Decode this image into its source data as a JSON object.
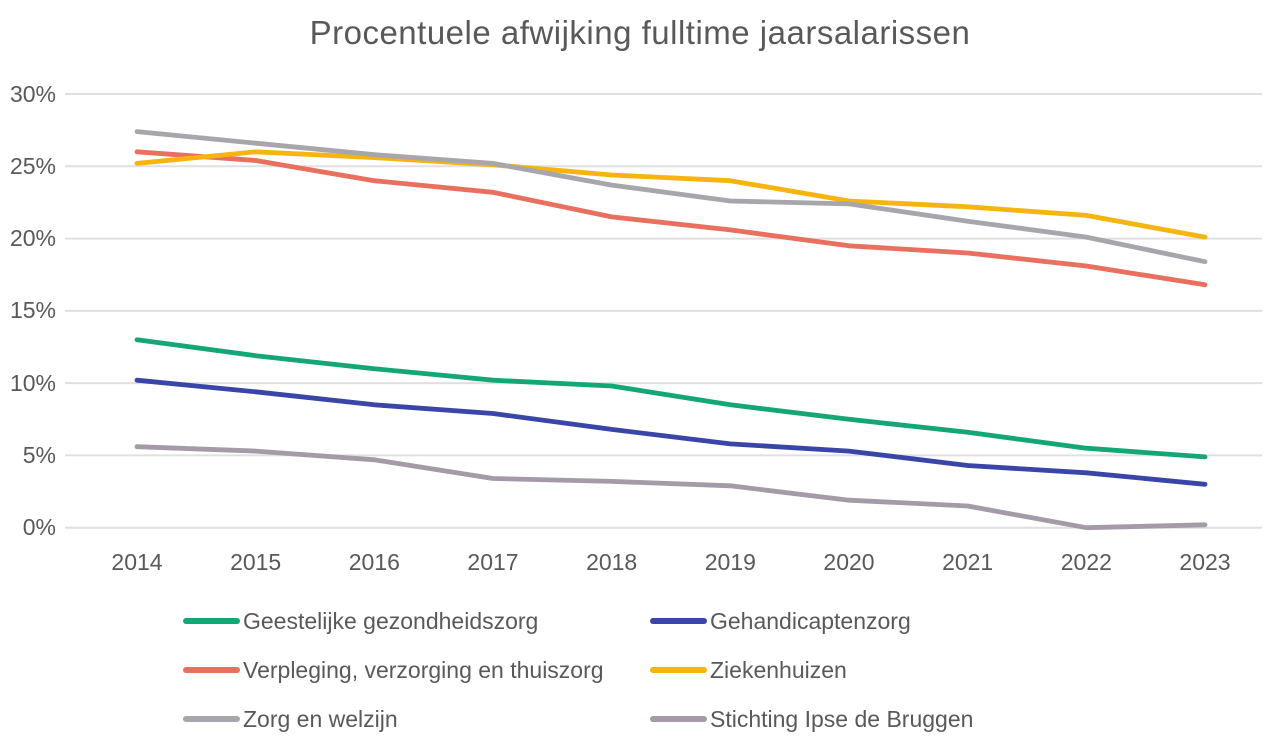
{
  "title": "Procentuele afwijking fulltime jaarsalarissen",
  "chart_data": {
    "type": "line",
    "title": "Procentuele afwijking fulltime jaarsalarissen",
    "x": [
      "2014",
      "2015",
      "2016",
      "2017",
      "2018",
      "2019",
      "2020",
      "2021",
      "2022",
      "2023"
    ],
    "series": [
      {
        "name": "Geestelijke gezondheidszorg",
        "color": "#14a775",
        "values": [
          13.0,
          11.9,
          11.0,
          10.2,
          9.8,
          8.5,
          7.5,
          6.6,
          5.5,
          4.9
        ]
      },
      {
        "name": "Gehandicaptenzorg",
        "color": "#3a45a8",
        "values": [
          10.2,
          9.4,
          8.5,
          7.9,
          6.8,
          5.8,
          5.3,
          4.3,
          3.8,
          3.0
        ]
      },
      {
        "name": "Verpleging, verzorging en thuiszorg",
        "color": "#e96f5e",
        "values": [
          26.0,
          25.4,
          24.0,
          23.2,
          21.5,
          20.6,
          19.5,
          19.0,
          18.1,
          16.8
        ]
      },
      {
        "name": "Ziekenhuizen",
        "color": "#f6b40e",
        "values": [
          25.2,
          26.0,
          25.6,
          25.1,
          24.4,
          24.0,
          22.6,
          22.2,
          21.6,
          20.1
        ]
      },
      {
        "name": "Zorg en welzijn",
        "color": "#a6a6ac",
        "values": [
          27.4,
          26.6,
          25.8,
          25.2,
          23.7,
          22.6,
          22.4,
          21.2,
          20.1,
          18.4
        ]
      },
      {
        "name": "Stichting Ipse de Bruggen",
        "color": "#a49aa8",
        "values": [
          5.6,
          5.3,
          4.7,
          3.4,
          3.2,
          2.9,
          1.9,
          1.5,
          0.0,
          0.2
        ]
      }
    ],
    "xlabel": "",
    "ylabel": "",
    "ylim": [
      0,
      30
    ],
    "ytick_step": 5,
    "ytick_labels": [
      "0%",
      "5%",
      "10%",
      "15%",
      "20%",
      "25%",
      "30%"
    ],
    "grid": true,
    "legend_position": "bottom",
    "legend_columns": 2
  },
  "colors": {
    "text": "#595959",
    "gridline": "#e0e0e0"
  }
}
